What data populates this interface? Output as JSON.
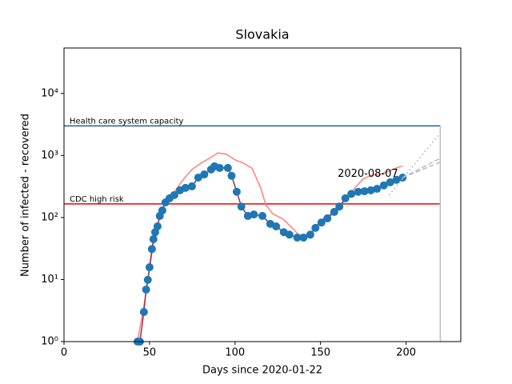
{
  "chart_data": {
    "type": "line",
    "title": "Slovakia",
    "xlabel": "Days since 2020-01-22",
    "ylabel": "Number of infected - recovered",
    "log_y": true,
    "xlim": [
      0,
      232
    ],
    "ylim": [
      1,
      54000
    ],
    "xticks": [
      0,
      50,
      100,
      150,
      200
    ],
    "yticks": [
      {
        "value": 1,
        "label": "10⁰"
      },
      {
        "value": 10,
        "label": "10¹"
      },
      {
        "value": 100,
        "label": "10²"
      },
      {
        "value": 1000,
        "label": "10³"
      },
      {
        "value": 10000,
        "label": "10⁴"
      }
    ],
    "series": [
      {
        "color": "#ff8080",
        "x": [
          43,
          48,
          52,
          56,
          60,
          65,
          70,
          75,
          80,
          85,
          90,
          95,
          100,
          105,
          110,
          115,
          118,
          122,
          128,
          133,
          138,
          142,
          146,
          150,
          155,
          160,
          165,
          170,
          175,
          180,
          185,
          190,
          195,
          198
        ],
        "values": [
          1,
          6,
          35,
          110,
          190,
          270,
          420,
          600,
          750,
          900,
          1100,
          1050,
          850,
          750,
          620,
          300,
          160,
          115,
          95,
          70,
          50,
          50,
          62,
          90,
          110,
          140,
          200,
          300,
          420,
          480,
          500,
          560,
          640,
          680
        ]
      },
      {
        "color": "#1f77b4",
        "line_color": "#a0304f",
        "marker": true,
        "x": [
          43,
          44.4,
          46.7,
          48,
          49,
          50,
          51.4,
          52.3,
          53.3,
          54.7,
          56,
          57.5,
          59.3,
          61.7,
          64.5,
          67.8,
          71,
          74.8,
          78.5,
          82,
          86,
          88,
          91,
          95.8,
          98,
          101,
          103.7,
          107.5,
          111,
          116,
          120.6,
          124,
          128.5,
          131.8,
          136.4,
          140,
          144,
          147,
          150.5,
          154,
          158,
          161,
          164.5,
          168,
          172,
          175.7,
          179.4,
          183,
          187,
          190.7,
          194.4,
          198
        ],
        "values": [
          1,
          1,
          3,
          6.9,
          9.9,
          15.8,
          31,
          44.8,
          58,
          72,
          106,
          130,
          175,
          204,
          230,
          275,
          300,
          318,
          440,
          495,
          595,
          670,
          630,
          630,
          470,
          260,
          150,
          106,
          112,
          106,
          79,
          72,
          58,
          53,
          47.5,
          47.5,
          53,
          68,
          83,
          97,
          123,
          150,
          204,
          240,
          260,
          265,
          275,
          290,
          330,
          370,
          405,
          440
        ]
      },
      {
        "color": "#bbbbbb",
        "dash": "2,3",
        "x": [
          190,
          220
        ],
        "values": [
          230,
          2300
        ]
      },
      {
        "color": "#bbbbbb",
        "dash": "6,3",
        "x": [
          198,
          220
        ],
        "values": [
          440,
          900
        ]
      },
      {
        "color": "#bbbbbb",
        "dash": "6,3",
        "x": [
          198,
          220
        ],
        "values": [
          440,
          780
        ]
      }
    ],
    "hlines": [
      {
        "value": 3000,
        "label": "Health care system capacity",
        "color": "#1f5f8f",
        "label_color": "#000000"
      },
      {
        "value": 166,
        "label": "CDC high risk",
        "color": "#ee0000",
        "label_color": "#ee0000"
      }
    ],
    "vline": {
      "x": 220,
      "color": "#bbbbbb"
    },
    "annotations": [
      {
        "text": "2020-08-07",
        "x": 160,
        "y": 500
      }
    ]
  }
}
